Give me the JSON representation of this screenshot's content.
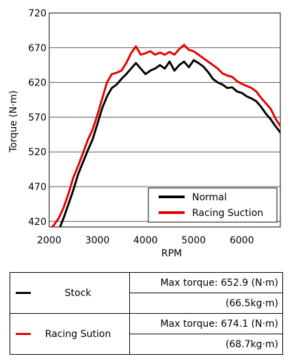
{
  "chart_data": {
    "type": "line",
    "xlabel": "RPM",
    "ylabel": "Torque (N·m)",
    "xlim": [
      2000,
      6800
    ],
    "ylim": [
      412,
      720
    ],
    "xticks": [
      2000,
      3000,
      4000,
      5000,
      6000
    ],
    "yticks": [
      420,
      470,
      520,
      570,
      620,
      670,
      720
    ],
    "grid": "horizontal",
    "legend_position": "bottom-right",
    "series": [
      {
        "name": "Normal",
        "color": "#000000",
        "x": [
          2200,
          2300,
          2400,
          2500,
          2600,
          2700,
          2800,
          2900,
          3000,
          3100,
          3200,
          3300,
          3400,
          3500,
          3600,
          3700,
          3800,
          3900,
          4000,
          4100,
          4200,
          4300,
          4400,
          4500,
          4600,
          4700,
          4800,
          4900,
          5000,
          5100,
          5200,
          5300,
          5400,
          5500,
          5600,
          5700,
          5800,
          5900,
          6000,
          6100,
          6200,
          6300,
          6400,
          6500,
          6600,
          6700,
          6800
        ],
        "y": [
          408,
          425,
          445,
          465,
          488,
          505,
          522,
          538,
          560,
          583,
          600,
          612,
          617,
          625,
          632,
          640,
          648,
          640,
          632,
          637,
          640,
          645,
          640,
          650,
          637,
          645,
          650,
          642,
          652,
          648,
          643,
          635,
          625,
          620,
          617,
          612,
          613,
          607,
          605,
          600,
          597,
          593,
          585,
          575,
          567,
          557,
          548
        ]
      },
      {
        "name": "Racing Suction",
        "color": "#e60000",
        "x": [
          2000,
          2100,
          2200,
          2300,
          2400,
          2500,
          2600,
          2700,
          2800,
          2900,
          3000,
          3100,
          3200,
          3300,
          3400,
          3500,
          3600,
          3700,
          3800,
          3900,
          4000,
          4100,
          4200,
          4300,
          4400,
          4500,
          4600,
          4700,
          4800,
          4900,
          5000,
          5100,
          5200,
          5300,
          5400,
          5500,
          5600,
          5700,
          5800,
          5900,
          6000,
          6100,
          6200,
          6300,
          6400,
          6500,
          6600,
          6700,
          6800
        ],
        "y": [
          408,
          415,
          425,
          440,
          460,
          483,
          500,
          518,
          537,
          552,
          573,
          597,
          620,
          632,
          634,
          637,
          648,
          662,
          672,
          660,
          662,
          665,
          660,
          663,
          660,
          664,
          660,
          668,
          674,
          667,
          665,
          660,
          655,
          650,
          645,
          640,
          633,
          630,
          628,
          622,
          618,
          615,
          612,
          607,
          598,
          590,
          582,
          568,
          557
        ]
      }
    ]
  },
  "table": {
    "rows": [
      {
        "name": "Stock",
        "color": "#000000",
        "max_torque": "Max torque: 652.9 (N·m)",
        "max_torque_kg": "(66.5kg·m)"
      },
      {
        "name": "Racing Sution",
        "color": "#e60000",
        "max_torque": "Max torque: 674.1 (N·m)",
        "max_torque_kg": "(68.7kg·m)"
      }
    ]
  }
}
